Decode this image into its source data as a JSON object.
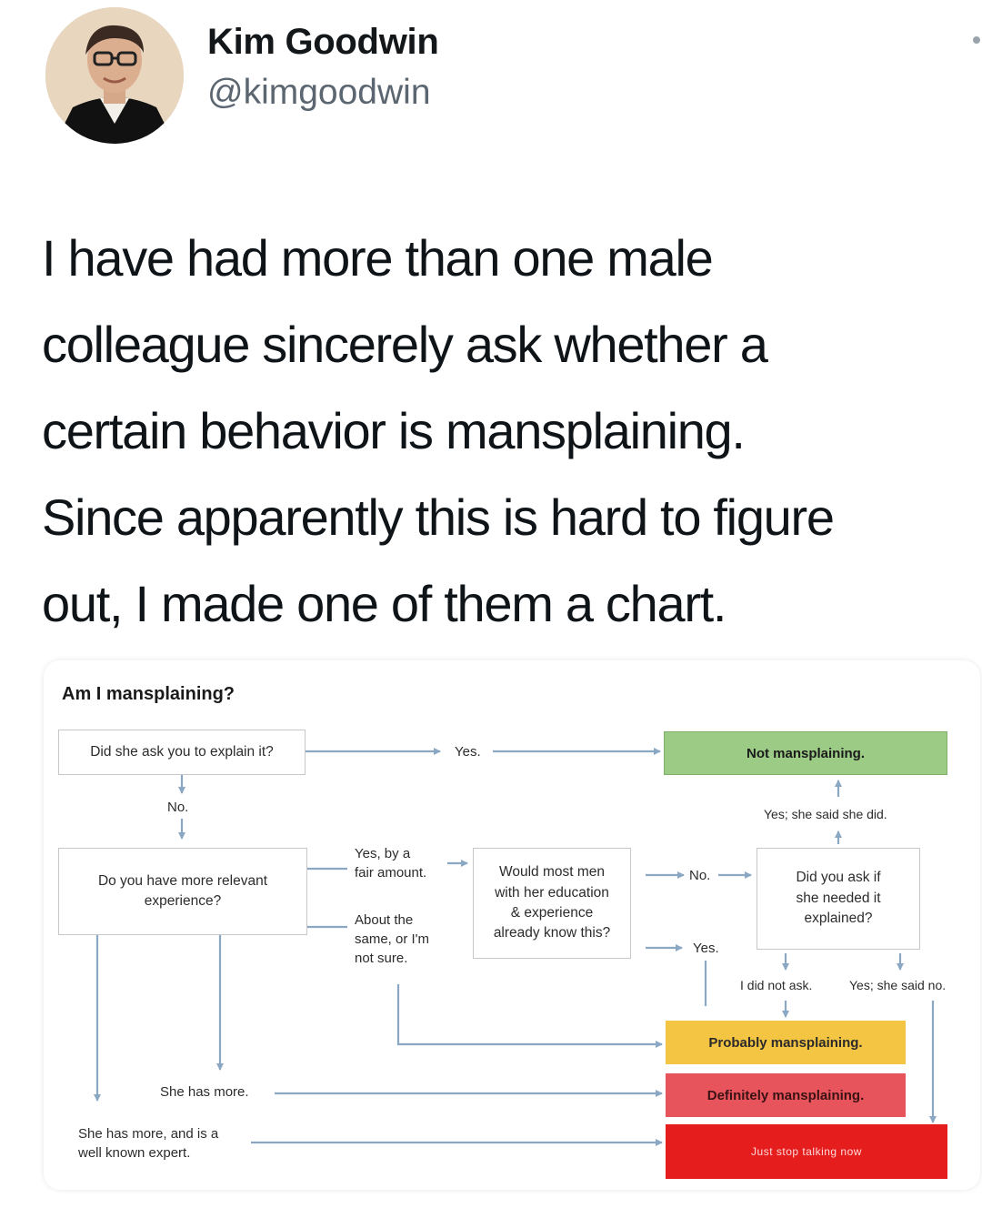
{
  "tweet": {
    "author": {
      "display_name": "Kim Goodwin",
      "handle": "@kimgoodwin"
    },
    "text_lines": [
      "I have had more than one male",
      "colleague sincerely ask whether a",
      "certain behavior is mansplaining.",
      "Since apparently this is hard to figure",
      "out, I made one of them a chart."
    ]
  },
  "flowchart": {
    "title": "Am I mansplaining?",
    "nodes": {
      "q_ask": "Did she ask you to explain it?",
      "q_experience": [
        "Do you have more relevant",
        "experience?"
      ],
      "q_would_know": [
        "Would most men",
        "with her education",
        "& experience",
        "already know this?"
      ],
      "q_did_you_ask": [
        "Did you ask if",
        "she needed it",
        "explained?"
      ]
    },
    "results": {
      "not": {
        "label": "Not mansplaining.",
        "color": "#9ccb86"
      },
      "probably": {
        "label": "Probably mansplaining.",
        "color": "#f4c542"
      },
      "definitely": {
        "label": "Definitely mansplaining.",
        "color": "#e8545b"
      },
      "stop": {
        "label": "Just stop talking now",
        "color": "#e51d1d"
      }
    },
    "edge_labels": {
      "yes_top": "Yes.",
      "no_down": "No.",
      "yes_by_fair": [
        "Yes, by a",
        "fair amount."
      ],
      "about_same": [
        "About the",
        "same, or I'm",
        "not sure."
      ],
      "no_mid": "No.",
      "yes_mid": "Yes.",
      "yes_she_did": "Yes; she said she did.",
      "did_not_ask": "I did not ask.",
      "yes_said_no": "Yes; she said no.",
      "she_has_more": "She has more.",
      "she_has_more_expert": [
        "She has more, and is a",
        "well known expert."
      ]
    }
  }
}
